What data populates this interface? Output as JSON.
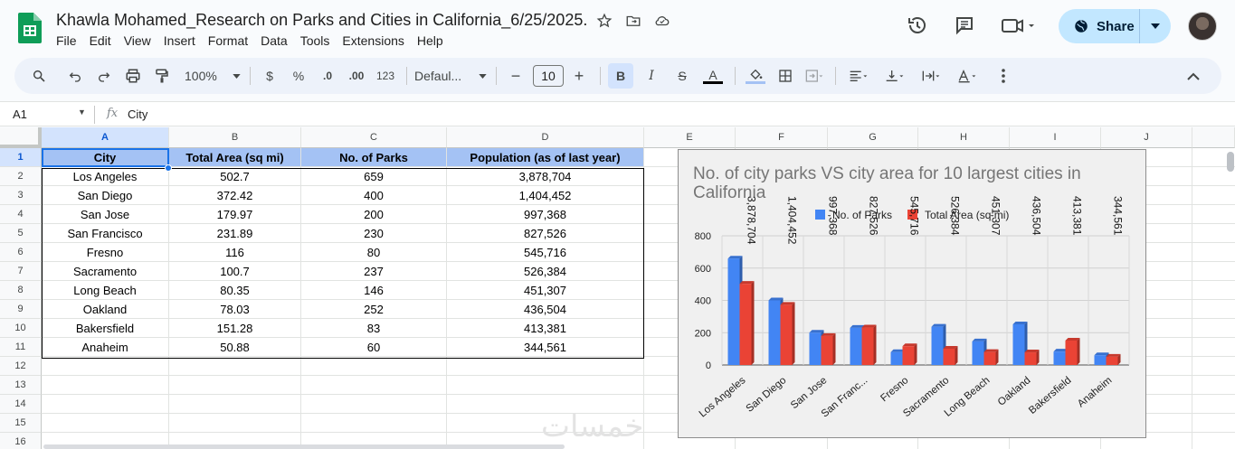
{
  "doc": {
    "title": "Khawla Mohamed_Research on Parks and Cities in California_6/25/2025.",
    "menu": [
      "File",
      "Edit",
      "View",
      "Insert",
      "Format",
      "Data",
      "Tools",
      "Extensions",
      "Help"
    ],
    "share_label": "Share"
  },
  "toolbar": {
    "zoom": "100%",
    "currency": "$",
    "percent": "%",
    "dec_decrease": ".0",
    "dec_increase": ".00",
    "number_format": "123",
    "font": "Defaul...",
    "font_size": "10",
    "bold": "B",
    "italic": "I",
    "strike": "S",
    "text_color": "A"
  },
  "formula": {
    "cell_ref": "A1",
    "fx": "fx",
    "value": "City"
  },
  "grid": {
    "columns": [
      "A",
      "B",
      "C",
      "D",
      "E",
      "F",
      "G",
      "H",
      "I",
      "J"
    ],
    "rows": [
      "1",
      "2",
      "3",
      "4",
      "5",
      "6",
      "7",
      "8",
      "9",
      "10",
      "11",
      "12",
      "13",
      "14",
      "15",
      "16"
    ],
    "headers": [
      "City",
      "Total Area (sq mi)",
      "No. of Parks",
      "Population (as of last year)"
    ],
    "data": [
      [
        "Los Angeles",
        "502.7",
        "659",
        "3,878,704"
      ],
      [
        "San Diego",
        "372.42",
        "400",
        "1,404,452"
      ],
      [
        "San Jose",
        "179.97",
        "200",
        "997,368"
      ],
      [
        "San Francisco",
        "231.89",
        "230",
        "827,526"
      ],
      [
        "Fresno",
        "116",
        "80",
        "545,716"
      ],
      [
        "Sacramento",
        "100.7",
        "237",
        "526,384"
      ],
      [
        "Long Beach",
        "80.35",
        "146",
        "451,307"
      ],
      [
        "Oakland",
        "78.03",
        "252",
        "436,504"
      ],
      [
        "Bakersfield",
        "151.28",
        "83",
        "413,381"
      ],
      [
        "Anaheim",
        "50.88",
        "60",
        "344,561"
      ]
    ]
  },
  "chart_data": {
    "type": "bar",
    "title": "No. of city parks VS city area for 10 largest cities in California",
    "categories": [
      "Los Angeles",
      "San Diego",
      "San Jose",
      "San Franc...",
      "Fresno",
      "Sacramento",
      "Long Beach",
      "Oakland",
      "Bakersfield",
      "Anaheim"
    ],
    "series": [
      {
        "name": "No. of Parks",
        "color": "#4285f4",
        "values": [
          659,
          400,
          200,
          230,
          80,
          237,
          146,
          252,
          83,
          60
        ]
      },
      {
        "name": "Total Area (sq mi)",
        "color": "#ea4335",
        "values": [
          502.7,
          372.42,
          179.97,
          231.89,
          116,
          100.7,
          80.35,
          78.03,
          151.28,
          50.88
        ]
      }
    ],
    "data_labels": [
      "3,878,704",
      "1,404,452",
      "997,368",
      "827,526",
      "545,716",
      "526,384",
      "451,307",
      "436,504",
      "413,381",
      "344,561"
    ],
    "yticks": [
      "0",
      "200",
      "400",
      "600",
      "800"
    ],
    "ylim": [
      0,
      800
    ],
    "legend": "top",
    "grid": true
  },
  "watermark": "خمسات"
}
